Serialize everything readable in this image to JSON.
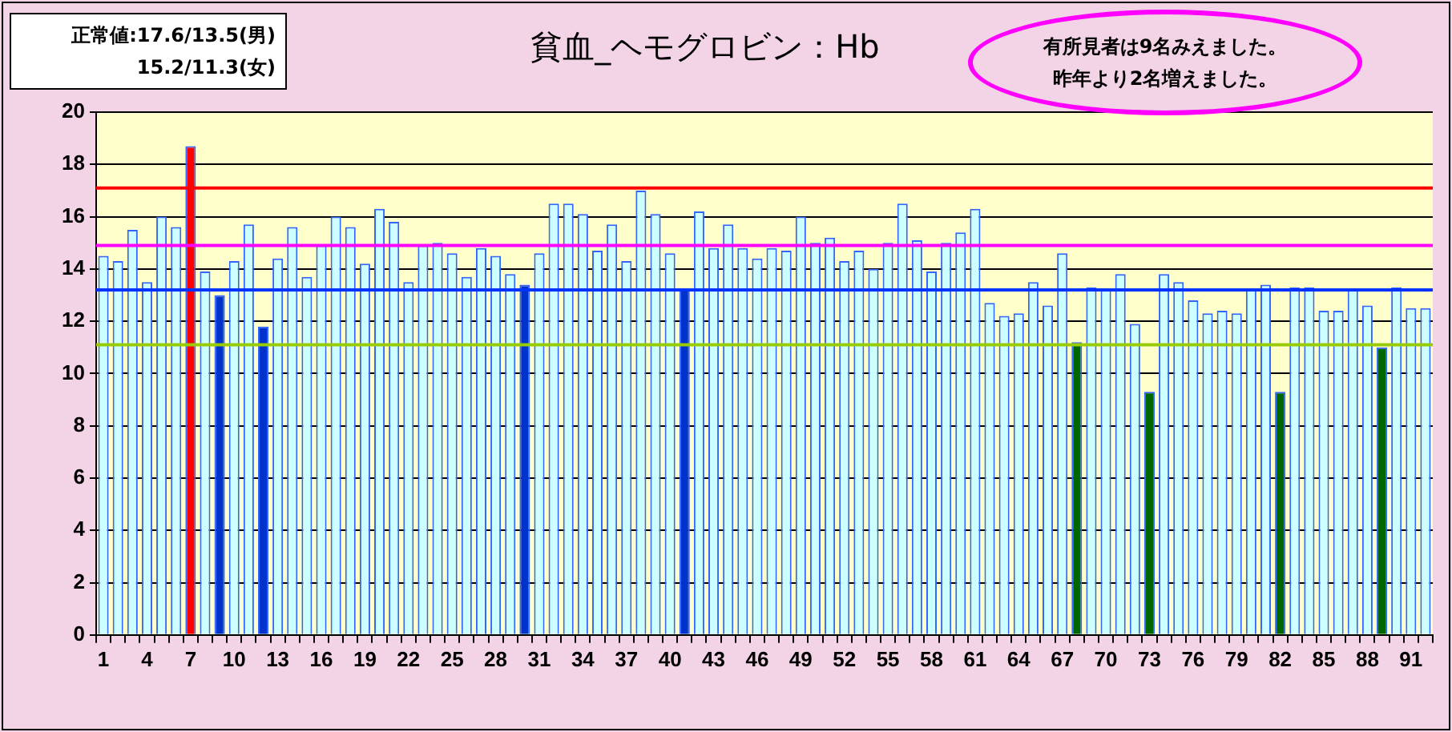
{
  "chart_data": {
    "type": "bar",
    "title": "貧血_ヘモグロビン：Hb",
    "categories": [
      "1",
      null,
      null,
      "4",
      null,
      null,
      "7",
      null,
      null,
      "10",
      null,
      null,
      "13",
      null,
      null,
      "16",
      null,
      null,
      "19",
      null,
      null,
      "22",
      null,
      null,
      "25",
      null,
      null,
      "28",
      null,
      null,
      "31",
      null,
      null,
      "34",
      null,
      null,
      "37",
      null,
      null,
      "40",
      null,
      null,
      "43",
      null,
      null,
      "46",
      null,
      null,
      "49",
      null,
      null,
      "52",
      null,
      null,
      "55",
      null,
      null,
      "58",
      null,
      null,
      "61",
      null,
      null,
      "64",
      null,
      null,
      "67",
      null,
      null,
      "70",
      null,
      null,
      "73",
      null,
      null,
      "76",
      null,
      null,
      "79",
      null,
      null,
      "82",
      null,
      null,
      "85",
      null,
      null,
      "88",
      null,
      null,
      "91",
      null
    ],
    "values": [
      14.5,
      14.3,
      15.5,
      13.5,
      16.0,
      15.6,
      18.7,
      13.9,
      13.0,
      14.3,
      15.7,
      11.8,
      14.4,
      15.6,
      13.7,
      14.9,
      16.0,
      15.6,
      14.2,
      16.3,
      15.8,
      13.5,
      14.9,
      15.0,
      14.6,
      13.7,
      14.8,
      14.5,
      13.8,
      13.4,
      14.6,
      16.5,
      16.5,
      16.1,
      14.7,
      15.7,
      14.3,
      17.0,
      16.1,
      14.6,
      13.2,
      16.2,
      14.8,
      15.7,
      14.8,
      14.4,
      14.8,
      14.7,
      16.0,
      15.0,
      15.2,
      14.3,
      14.7,
      14.0,
      15.0,
      16.5,
      15.1,
      13.9,
      15.0,
      15.4,
      16.3,
      12.7,
      12.2,
      12.3,
      13.5,
      12.6,
      14.6,
      11.2,
      13.3,
      13.2,
      13.8,
      11.9,
      9.3,
      13.8,
      13.5,
      12.8,
      12.3,
      12.4,
      12.3,
      13.2,
      13.4,
      9.3,
      13.3,
      13.3,
      12.4,
      12.4,
      13.2,
      12.6,
      11.0,
      13.3,
      12.5,
      12.5
    ],
    "colors": [
      "#ccffff",
      "#ccffff",
      "#ccffff",
      "#ccffff",
      "#ccffff",
      "#ccffff",
      "#ff0000",
      "#ccffff",
      "#0033cc",
      "#ccffff",
      "#ccffff",
      "#0033cc",
      "#ccffff",
      "#ccffff",
      "#ccffff",
      "#ccffff",
      "#ccffff",
      "#ccffff",
      "#ccffff",
      "#ccffff",
      "#ccffff",
      "#ccffff",
      "#ccffff",
      "#ccffff",
      "#ccffff",
      "#ccffff",
      "#ccffff",
      "#ccffff",
      "#ccffff",
      "#0033cc",
      "#ccffff",
      "#ccffff",
      "#ccffff",
      "#ccffff",
      "#ccffff",
      "#ccffff",
      "#ccffff",
      "#ccffff",
      "#ccffff",
      "#ccffff",
      "#0033cc",
      "#ccffff",
      "#ccffff",
      "#ccffff",
      "#ccffff",
      "#ccffff",
      "#ccffff",
      "#ccffff",
      "#ccffff",
      "#ccffff",
      "#ccffff",
      "#ccffff",
      "#ccffff",
      "#ccffff",
      "#ccffff",
      "#ccffff",
      "#ccffff",
      "#ccffff",
      "#ccffff",
      "#ccffff",
      "#ccffff",
      "#ccffff",
      "#ccffff",
      "#ccffff",
      "#ccffff",
      "#ccffff",
      "#ccffff",
      "#006600",
      "#ccffff",
      "#ccffff",
      "#ccffff",
      "#ccffff",
      "#006600",
      "#ccffff",
      "#ccffff",
      "#ccffff",
      "#ccffff",
      "#ccffff",
      "#ccffff",
      "#ccffff",
      "#ccffff",
      "#006600",
      "#ccffff",
      "#ccffff",
      "#ccffff",
      "#ccffff",
      "#ccffff",
      "#ccffff",
      "#006600",
      "#ccffff",
      "#ccffff",
      "#ccffff"
    ],
    "ylim": [
      0,
      20
    ],
    "yticks": [
      0,
      2,
      4,
      6,
      8,
      10,
      12,
      14,
      16,
      18,
      20
    ],
    "grid": "y",
    "ref_lines": [
      {
        "axis": "y",
        "value": 17.1,
        "color": "#ff0000"
      },
      {
        "axis": "y",
        "value": 14.9,
        "color": "#ff00ff"
      },
      {
        "axis": "y",
        "value": 13.2,
        "color": "#0033ff"
      },
      {
        "axis": "y",
        "value": 11.1,
        "color": "#99cc00"
      }
    ],
    "annotations": [
      "正常値:17.6/13.5(男)",
      "15.2/11.3(女)",
      "有所見者は9名みえました。",
      "昨年より2名増えました。"
    ]
  }
}
